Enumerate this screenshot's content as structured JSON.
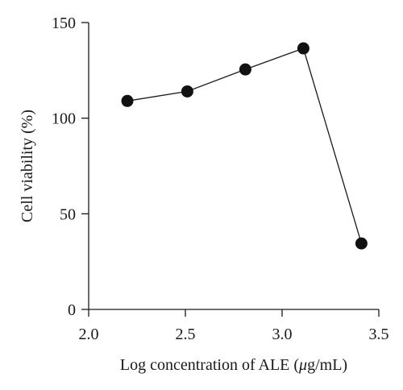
{
  "chart_data": {
    "type": "line",
    "xlabel_prefix": "Log concentration of ALE (",
    "xlabel_unit_mu": "μ",
    "xlabel_suffix": "g/mL)",
    "ylabel": "Cell viability (%)",
    "xlim": [
      2.0,
      3.5
    ],
    "ylim": [
      0,
      150
    ],
    "xticks": [
      "2.0",
      "2.5",
      "3.0",
      "3.5"
    ],
    "yticks": [
      "0",
      "50",
      "100",
      "150"
    ],
    "grid": false,
    "series": [
      {
        "x": [
          2.2,
          2.51,
          2.81,
          3.11,
          3.41
        ],
        "y": [
          109,
          114,
          125.5,
          136.5,
          34.5
        ]
      }
    ]
  }
}
